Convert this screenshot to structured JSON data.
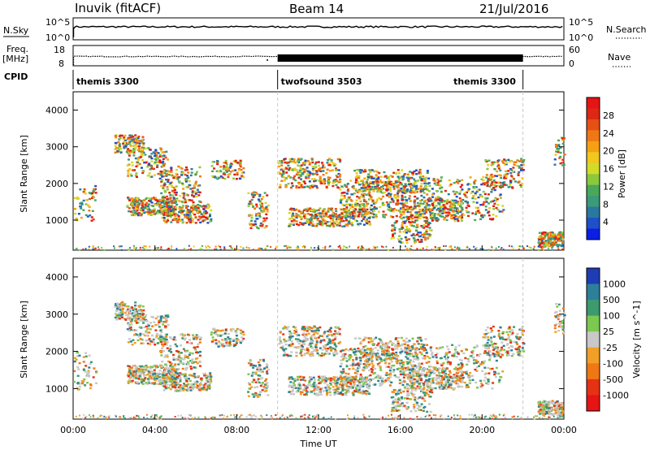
{
  "header": {
    "radar": "Inuvik (fitACF)",
    "beam": "Beam 14",
    "date": "21/Jul/2016"
  },
  "side_labels": {
    "nsky": "N.Sky",
    "nsearch": "N.Search",
    "freq_top": "Freq.",
    "freq_unit": "[MHz]",
    "nave": "Nave",
    "cpid": "CPID"
  },
  "x_axis": {
    "label": "Time UT",
    "ticks": [
      "00:00",
      "04:00",
      "08:00",
      "12:00",
      "16:00",
      "20:00",
      "00:00"
    ]
  },
  "noise_axis": {
    "left_ticks": [
      "10^5",
      "10^0"
    ],
    "right_ticks": [
      "10^5",
      "10^0"
    ]
  },
  "freq_axis": {
    "left_ticks": [
      "18",
      "8"
    ],
    "right_ticks": [
      "60",
      "0"
    ]
  },
  "cpid_segments": [
    {
      "label": "themis 3300",
      "start_hour": 0,
      "end_hour": 10
    },
    {
      "label": "twofsound 3503",
      "start_hour": 10,
      "end_hour": 22
    },
    {
      "label": "themis 3300",
      "start_hour": 22,
      "end_hour": 24
    }
  ],
  "power_colorbar": {
    "label": "Power [dB]",
    "ticks": [
      "28",
      "24",
      "20",
      "16",
      "12",
      "8",
      "4"
    ],
    "colors": [
      "#0a1ee6",
      "#1e50c8",
      "#2a78a0",
      "#3a9a7a",
      "#4aa85a",
      "#8cc83c",
      "#d2dc28",
      "#f0c81e",
      "#f5a014",
      "#f07814",
      "#e65014",
      "#dc2814",
      "#e61414"
    ]
  },
  "velocity_colorbar": {
    "label": "Velocity [m s^-1]",
    "ticks": [
      "1000",
      "500",
      "100",
      "25",
      "-25",
      "-100",
      "-500",
      "-1000"
    ],
    "colors": [
      "#1e3cb4",
      "#2d7f9a",
      "#3c9a6e",
      "#7cc850",
      "#c8c8c8",
      "#f0a028",
      "#f07814",
      "#e63214",
      "#e61414"
    ]
  },
  "slant_axis": {
    "label": "Slant Range [km]",
    "ticks": [
      "4000",
      "3000",
      "2000",
      "1000"
    ]
  },
  "chart_data": [
    {
      "type": "line",
      "title": "N.Sky",
      "x_range": [
        0,
        24
      ],
      "y_scale": "log",
      "ylim": [
        1,
        100000
      ],
      "grid": false
    },
    {
      "type": "line",
      "title": "Freq. [MHz]",
      "x_range": [
        0,
        24
      ],
      "ylim": [
        8,
        18
      ],
      "grid": false
    },
    {
      "type": "heatmap",
      "title": "Power",
      "xlabel": "Time UT",
      "ylabel": "Slant Range [km]",
      "x_range": [
        0,
        24
      ],
      "ylim": [
        180,
        4500
      ],
      "colorbar_label": "Power [dB]",
      "colorbar_ticks": [
        4,
        8,
        12,
        16,
        20,
        24,
        28
      ]
    },
    {
      "type": "heatmap",
      "title": "Velocity",
      "xlabel": "Time UT",
      "ylabel": "Slant Range [km]",
      "x_range": [
        0,
        24
      ],
      "ylim": [
        180,
        4500
      ],
      "colorbar_label": "Velocity [m s^-1]",
      "colorbar_ticks": [
        -1000,
        -500,
        -100,
        -25,
        25,
        100,
        500,
        1000
      ]
    }
  ]
}
